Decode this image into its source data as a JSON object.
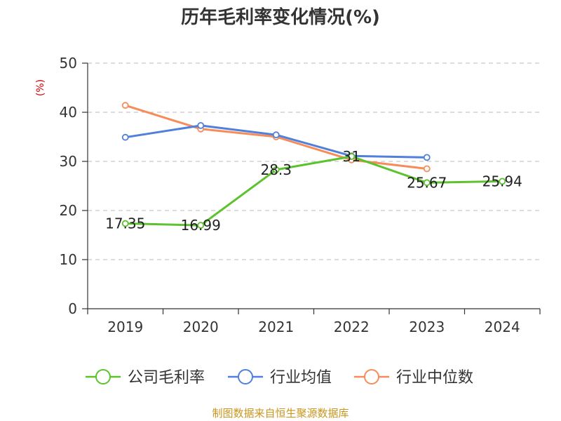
{
  "chart_data": {
    "type": "line",
    "title": "历年毛利率变化情况(%)",
    "ylabel": "(%)",
    "categories": [
      "2019",
      "2020",
      "2021",
      "2022",
      "2023",
      "2024"
    ],
    "ylim": [
      0,
      50
    ],
    "yticks": [
      0,
      10,
      20,
      30,
      40,
      50
    ],
    "grid": true,
    "legend_position": "bottom",
    "series": [
      {
        "name": "公司毛利率",
        "color": "#5cc22d",
        "values": [
          17.35,
          16.99,
          28.3,
          31,
          25.67,
          25.94
        ],
        "labels": [
          "17.35",
          "16.99",
          "28.3",
          "31",
          "25.67",
          "25.94"
        ]
      },
      {
        "name": "行业均值",
        "color": "#5080dc",
        "values": [
          34.9,
          37.3,
          35.4,
          31.1,
          30.8,
          null
        ]
      },
      {
        "name": "行业中位数",
        "color": "#f58c5a",
        "values": [
          41.4,
          36.6,
          35.0,
          30.3,
          28.5,
          null
        ]
      }
    ],
    "source": "制图数据来自恒生聚源数据库",
    "colors": {
      "ylabel": "#cc0000",
      "source": "#c8961e",
      "axis": "#333333",
      "grid": "#bbbbbb"
    }
  }
}
